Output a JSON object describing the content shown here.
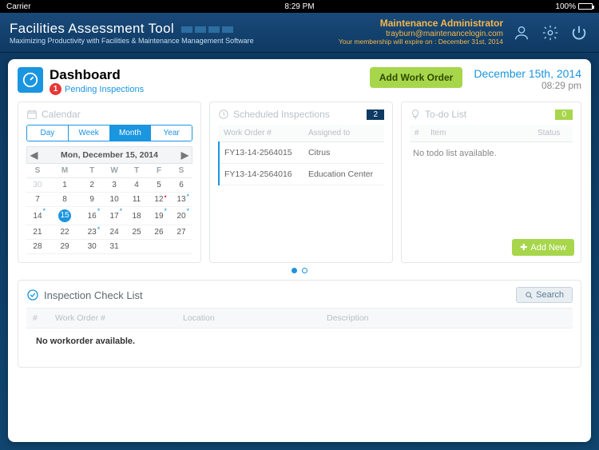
{
  "statusbar": {
    "carrier": "Carrier",
    "time": "8:29 PM",
    "battery": "100%"
  },
  "app": {
    "title": "Facilities Assessment Tool",
    "tagline": "Maximizing Productivity with Facilities & Maintenance Management Software",
    "user": {
      "role": "Maintenance Administrator",
      "email": "trayburn@maintenancelogin.com",
      "expire": "Your membership will expire on : December 31st, 2014"
    }
  },
  "page": {
    "title": "Dashboard",
    "pending_count": "1",
    "pending_label": "Pending Inspections",
    "add_work_order": "Add Work Order",
    "date": "December 15th, 2014",
    "time": "08:29 pm"
  },
  "calendar": {
    "title": "Calendar",
    "views": {
      "day": "Day",
      "week": "Week",
      "month": "Month",
      "year": "Year"
    },
    "active_view": "Month",
    "nav_label": "Mon, December 15, 2014",
    "dow": [
      "S",
      "M",
      "T",
      "W",
      "T",
      "F",
      "S"
    ],
    "grid": [
      [
        {
          "n": "30",
          "dim": true
        },
        {
          "n": "1"
        },
        {
          "n": "2"
        },
        {
          "n": "3"
        },
        {
          "n": "4"
        },
        {
          "n": "5"
        },
        {
          "n": "6"
        }
      ],
      [
        {
          "n": "7"
        },
        {
          "n": "8"
        },
        {
          "n": "9"
        },
        {
          "n": "10"
        },
        {
          "n": "11"
        },
        {
          "n": "12",
          "dot": true
        },
        {
          "n": "13",
          "ast": true
        }
      ],
      [
        {
          "n": "14",
          "ast": true
        },
        {
          "n": "15",
          "today": true
        },
        {
          "n": "16",
          "ast": true
        },
        {
          "n": "17",
          "ast": true
        },
        {
          "n": "18"
        },
        {
          "n": "19",
          "ast": true
        },
        {
          "n": "20",
          "ast": true
        }
      ],
      [
        {
          "n": "21"
        },
        {
          "n": "22"
        },
        {
          "n": "23",
          "ast": true
        },
        {
          "n": "24"
        },
        {
          "n": "25"
        },
        {
          "n": "26"
        },
        {
          "n": "27"
        }
      ],
      [
        {
          "n": "28"
        },
        {
          "n": "29"
        },
        {
          "n": "30"
        },
        {
          "n": "31"
        },
        {
          "n": "",
          "dim": true
        },
        {
          "n": "",
          "dim": true
        },
        {
          "n": "",
          "dim": true
        }
      ]
    ]
  },
  "scheduled": {
    "title": "Scheduled Inspections",
    "count": "2",
    "cols": {
      "wo": "Work Order #",
      "assigned": "Assigned to"
    },
    "rows": [
      {
        "wo": "FY13-14-2564015",
        "assigned": "Citrus"
      },
      {
        "wo": "FY13-14-2564016",
        "assigned": "Education Center"
      }
    ]
  },
  "todo": {
    "title": "To-do List",
    "count": "0",
    "cols": {
      "num": "#",
      "item": "Item",
      "status": "Status"
    },
    "empty": "No todo list available.",
    "add_new": "Add New"
  },
  "checklist": {
    "title": "Inspection Check List",
    "search": "Search",
    "cols": {
      "num": "#",
      "wo": "Work Order #",
      "loc": "Location",
      "desc": "Description"
    },
    "empty": "No workorder available."
  },
  "colors": {
    "header_dark": "#0e3a63",
    "accent_blue": "#1a95e0",
    "accent_green": "#a7d64b",
    "accent_orange": "#f6b74a",
    "badge_red": "#e53935"
  }
}
